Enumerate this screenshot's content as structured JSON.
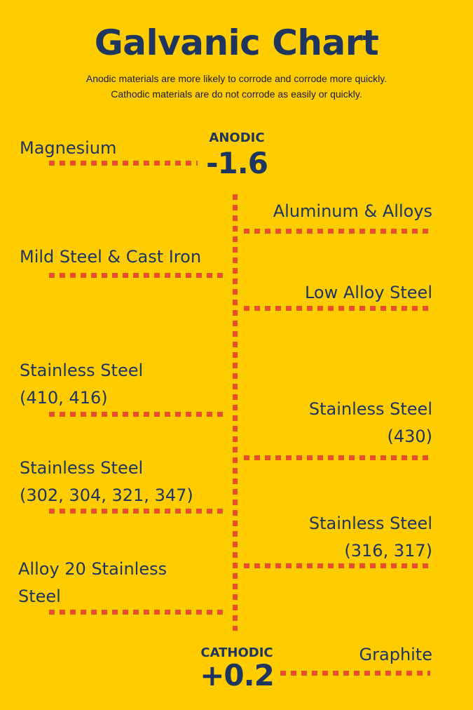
{
  "title": "Galvanic Chart",
  "subtitle": [
    "Anodic materials are more likely to corrode and corrode more quickly.",
    "Cathodic materials are do not corrode as easily or quickly."
  ],
  "anodic": {
    "label": "ANODIC",
    "value": "-1.6"
  },
  "cathodic": {
    "label": "CATHODIC",
    "value": "+0.2"
  },
  "materials": [
    {
      "lines": [
        "Magnesium"
      ],
      "side": "left"
    },
    {
      "lines": [
        "Aluminum & Alloys"
      ],
      "side": "right"
    },
    {
      "lines": [
        "Mild Steel & Cast Iron"
      ],
      "side": "left"
    },
    {
      "lines": [
        "Low Alloy Steel"
      ],
      "side": "right"
    },
    {
      "lines": [
        "Stainless Steel",
        "(410, 416)"
      ],
      "side": "left"
    },
    {
      "lines": [
        "Stainless Steel",
        "(430)"
      ],
      "side": "right"
    },
    {
      "lines": [
        "Stainless Steel",
        "(302, 304, 321, 347)"
      ],
      "side": "left"
    },
    {
      "lines": [
        "Stainless Steel",
        "(316, 317)"
      ],
      "side": "right"
    },
    {
      "lines": [
        "Alloy 20 Stainless",
        "Steel"
      ],
      "side": "left"
    },
    {
      "lines": [
        "Graphite"
      ],
      "side": "right"
    }
  ],
  "colors": {
    "background": "#FFCC00",
    "text": "#1E3560",
    "connector": "#E94E2B"
  }
}
